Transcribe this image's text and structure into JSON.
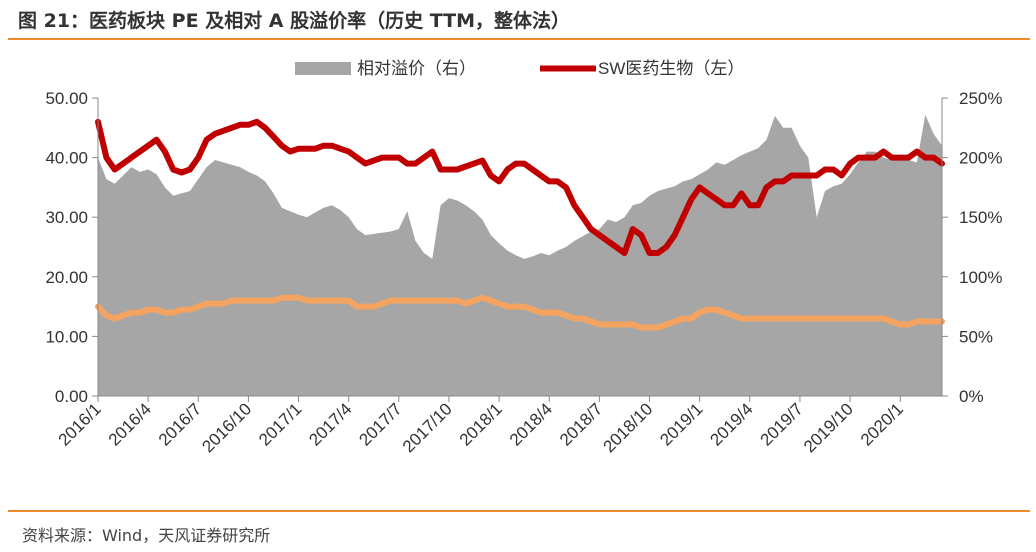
{
  "title": "图 21：医药板块 PE 及相对 A 股溢价率（历史 TTM，整体法）",
  "source": "资料来源：Wind，天风证券研究所",
  "colors": {
    "area": "#a6a6a6",
    "pe_line": "#c00000",
    "a_line": "#f4a460",
    "accent": "#f08a2c"
  },
  "chart_data": {
    "type": "line",
    "title": "",
    "legend_position": "top",
    "x_ticks": [
      "2016/1",
      "2016/4",
      "2016/7",
      "2016/10",
      "2017/1",
      "2017/4",
      "2017/7",
      "2017/10",
      "2018/1",
      "2018/4",
      "2018/7",
      "2018/10",
      "2019/1",
      "2019/4",
      "2019/7",
      "2019/10",
      "2020/1"
    ],
    "y_left": {
      "ticks": [
        "0.00",
        "10.00",
        "20.00",
        "30.00",
        "40.00",
        "50.00"
      ],
      "range": [
        0,
        50
      ]
    },
    "y_right": {
      "ticks": [
        "0%",
        "50%",
        "100%",
        "150%",
        "200%",
        "250%"
      ],
      "range": [
        0,
        250
      ]
    },
    "x_range": [
      0,
      50.5
    ],
    "series": [
      {
        "name": "相对溢价（右）",
        "kind": "area",
        "axis": "right",
        "x": [
          0,
          0.5,
          1,
          1.5,
          2,
          2.5,
          3,
          3.5,
          4,
          4.5,
          5,
          5.5,
          6,
          6.5,
          7,
          7.5,
          8,
          8.5,
          9,
          9.5,
          10,
          10.5,
          11,
          11.5,
          12,
          12.5,
          13,
          13.5,
          14,
          14.5,
          15,
          15.5,
          16,
          16.5,
          17,
          17.5,
          18,
          18.5,
          19,
          19.5,
          20,
          20.5,
          21,
          21.5,
          22,
          22.5,
          23,
          23.5,
          24,
          24.5,
          25,
          25.5,
          26,
          26.5,
          27,
          27.5,
          28,
          28.5,
          29,
          29.5,
          30,
          30.5,
          31,
          31.5,
          32,
          32.5,
          33,
          33.5,
          34,
          34.5,
          35,
          35.5,
          36,
          36.5,
          37,
          37.5,
          38,
          38.5,
          39,
          39.5,
          40,
          40.5,
          41,
          41.5,
          42,
          42.5,
          43,
          43.5,
          44,
          44.5,
          45,
          45.5,
          46,
          46.5,
          47,
          47.5,
          48,
          48.5,
          49,
          49.5,
          50,
          50.5
        ],
        "values": [
          200,
          182,
          178,
          185,
          192,
          188,
          190,
          186,
          175,
          168,
          170,
          172,
          182,
          192,
          198,
          196,
          194,
          192,
          188,
          185,
          180,
          170,
          158,
          155,
          152,
          150,
          154,
          158,
          160,
          156,
          150,
          140,
          135,
          136,
          137,
          138,
          140,
          155,
          130,
          120,
          115,
          160,
          166,
          164,
          160,
          155,
          148,
          135,
          128,
          122,
          118,
          115,
          117,
          120,
          118,
          122,
          125,
          130,
          134,
          138,
          140,
          148,
          146,
          150,
          160,
          162,
          168,
          172,
          174,
          176,
          180,
          182,
          186,
          190,
          196,
          194,
          198,
          202,
          205,
          208,
          215,
          235,
          225,
          225,
          210,
          200,
          150,
          172,
          176,
          178,
          186,
          196,
          205,
          205,
          200,
          198,
          198,
          198,
          196,
          236,
          220,
          210
        ]
      },
      {
        "name": "SW医药生物（左）",
        "kind": "line",
        "axis": "left",
        "x": [
          0,
          0.5,
          1,
          1.5,
          2,
          2.5,
          3,
          3.5,
          4,
          4.5,
          5,
          5.5,
          6,
          6.5,
          7,
          7.5,
          8,
          8.5,
          9,
          9.5,
          10,
          10.5,
          11,
          11.5,
          12,
          12.5,
          13,
          13.5,
          14,
          14.5,
          15,
          15.5,
          16,
          16.5,
          17,
          17.5,
          18,
          18.5,
          19,
          19.5,
          20,
          20.5,
          21,
          21.5,
          22,
          22.5,
          23,
          23.5,
          24,
          24.5,
          25,
          25.5,
          26,
          26.5,
          27,
          27.5,
          28,
          28.5,
          29,
          29.5,
          30,
          30.5,
          31,
          31.5,
          32,
          32.5,
          33,
          33.5,
          34,
          34.5,
          35,
          35.5,
          36,
          36.5,
          37,
          37.5,
          38,
          38.5,
          39,
          39.5,
          40,
          40.5,
          41,
          41.5,
          42,
          42.5,
          43,
          43.5,
          44,
          44.5,
          45,
          45.5,
          46,
          46.5,
          47,
          47.5,
          48,
          48.5,
          49,
          49.5,
          50,
          50.5
        ],
        "values": [
          46,
          40,
          38,
          39,
          40,
          41,
          42,
          43,
          41,
          38,
          37.5,
          38,
          40,
          43,
          44,
          44.5,
          45,
          45.5,
          45.5,
          46,
          45,
          43.5,
          42,
          41,
          41.5,
          41.5,
          41.5,
          42,
          42,
          41.5,
          41,
          40,
          39,
          39.5,
          40,
          40,
          40,
          39,
          39,
          40,
          41,
          38,
          38,
          38,
          38.5,
          39,
          39.5,
          37,
          36,
          38,
          39,
          39,
          38,
          37,
          36,
          36,
          35,
          32,
          30,
          28,
          27,
          26,
          25,
          24,
          28,
          27,
          24,
          24,
          25,
          27,
          30,
          33,
          35,
          34,
          33,
          32,
          32,
          34,
          32,
          32,
          35,
          36,
          36,
          37,
          37,
          37,
          37,
          38,
          38,
          37,
          39,
          40,
          40,
          40,
          41,
          40,
          40,
          40,
          41,
          40,
          40,
          39
        ],
        "line_width": 6
      },
      {
        "name": "",
        "kind": "line",
        "axis": "left",
        "x": [
          0,
          0.5,
          1,
          1.5,
          2,
          2.5,
          3,
          3.5,
          4,
          4.5,
          5,
          5.5,
          6,
          6.5,
          7,
          7.5,
          8,
          8.5,
          9,
          9.5,
          10,
          10.5,
          11,
          11.5,
          12,
          12.5,
          13,
          13.5,
          14,
          14.5,
          15,
          15.5,
          16,
          16.5,
          17,
          17.5,
          18,
          18.5,
          19,
          19.5,
          20,
          20.5,
          21,
          21.5,
          22,
          22.5,
          23,
          23.5,
          24,
          24.5,
          25,
          25.5,
          26,
          26.5,
          27,
          27.5,
          28,
          28.5,
          29,
          29.5,
          30,
          30.5,
          31,
          31.5,
          32,
          32.5,
          33,
          33.5,
          34,
          34.5,
          35,
          35.5,
          36,
          36.5,
          37,
          37.5,
          38,
          38.5,
          39,
          39.5,
          40,
          40.5,
          41,
          41.5,
          42,
          42.5,
          43,
          43.5,
          44,
          44.5,
          45,
          45.5,
          46,
          46.5,
          47,
          47.5,
          48,
          48.5,
          49,
          49.5,
          50,
          50.5
        ],
        "values": [
          15,
          13.5,
          13,
          13.5,
          14,
          14,
          14.5,
          14.5,
          14,
          14,
          14.5,
          14.5,
          15,
          15.5,
          15.5,
          15.5,
          16,
          16,
          16,
          16,
          16,
          16,
          16.5,
          16.5,
          16.5,
          16,
          16,
          16,
          16,
          16,
          16,
          15,
          15,
          15,
          15.5,
          16,
          16,
          16,
          16,
          16,
          16,
          16,
          16,
          16,
          15.5,
          16,
          16.5,
          16,
          15.5,
          15,
          15,
          15,
          14.5,
          14,
          14,
          14,
          13.5,
          13,
          13,
          12.5,
          12,
          12,
          12,
          12,
          12,
          11.5,
          11.5,
          11.5,
          12,
          12.5,
          13,
          13,
          14,
          14.5,
          14.5,
          14,
          13.5,
          13,
          13,
          13,
          13,
          13,
          13,
          13,
          13,
          13,
          13,
          13,
          13,
          13,
          13,
          13,
          13,
          13,
          13,
          12.5,
          12,
          12,
          12.5,
          12.5,
          12.5,
          12.5
        ],
        "line_width": 6
      }
    ]
  }
}
